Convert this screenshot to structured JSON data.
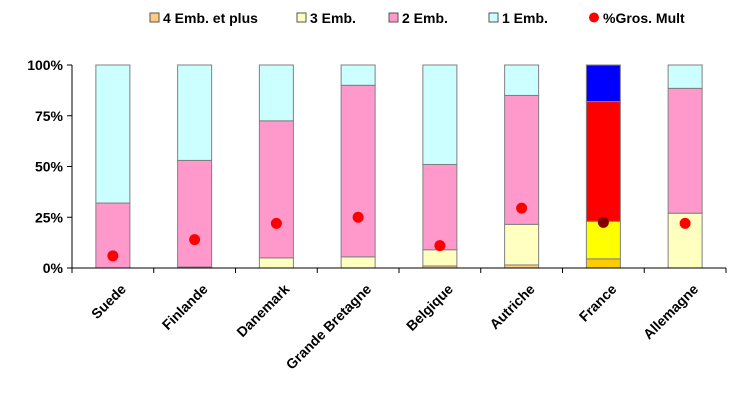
{
  "chart_data": {
    "type": "bar",
    "stacked": true,
    "categories": [
      "Suede",
      "Finlande",
      "Danemark",
      "Grande Bretagne",
      "Belgique",
      "Autriche",
      "France",
      "Allemagne"
    ],
    "ylim": [
      0,
      100
    ],
    "yticks": [
      "0%",
      "25%",
      "50%",
      "75%",
      "100%"
    ],
    "ytick_values": [
      0,
      25,
      50,
      75,
      100
    ],
    "legend_position": "top",
    "series": [
      {
        "name": "4 Emb. et plus",
        "color": "#ffcc80",
        "values": [
          0,
          0.5,
          0,
          0,
          1,
          1.5,
          4.5,
          0
        ]
      },
      {
        "name": "3 Emb.",
        "color": "#ffffc0",
        "values": [
          0,
          0,
          5,
          5.5,
          8,
          20,
          18.5,
          27
        ]
      },
      {
        "name": "2 Emb.",
        "color": "#ff99cc",
        "values": [
          32,
          52.5,
          67.5,
          84.5,
          42,
          63.5,
          59,
          61.5
        ]
      },
      {
        "name": "1 Emb.",
        "color": "#ccffff",
        "values": [
          68,
          47,
          27.5,
          10,
          49,
          15,
          18,
          11.5
        ]
      }
    ],
    "marker_series": {
      "name": "%Gros. Mult",
      "color": "#ff0000",
      "values": [
        6,
        14,
        22,
        25,
        11,
        29.5,
        22.5,
        22
      ]
    },
    "france_bar_colors": {
      "4 Emb. et plus": "#ffcc00",
      "3 Emb.": "#ffff00",
      "2 Emb.": "#ff0000",
      "1 Emb.": "#0000ff"
    },
    "france_marker_color": "#800000"
  }
}
